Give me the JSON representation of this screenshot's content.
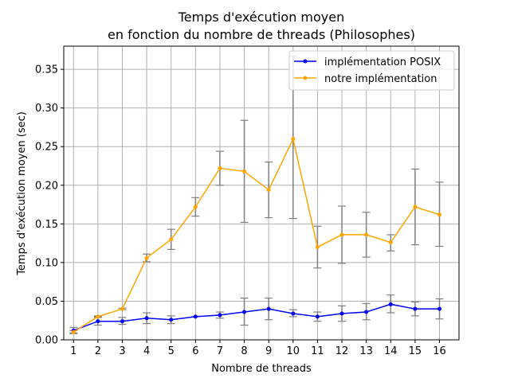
{
  "chart_data": {
    "type": "line",
    "title_line1": "Temps d'exécution moyen",
    "title_line2": "en fonction du nombre de threads (Philosophes)",
    "xlabel": "Nombre de threads",
    "ylabel": "Temps d'exécution moyen (sec)",
    "x": [
      1,
      2,
      3,
      4,
      5,
      6,
      7,
      8,
      9,
      10,
      11,
      12,
      13,
      14,
      15,
      16
    ],
    "xlim": [
      0.6,
      16.8
    ],
    "ylim": [
      0.0,
      0.38
    ],
    "yticks": [
      0.0,
      0.05,
      0.1,
      0.15,
      0.2,
      0.25,
      0.3,
      0.35
    ],
    "ytick_labels": [
      "0.00",
      "0.05",
      "0.10",
      "0.15",
      "0.20",
      "0.25",
      "0.30",
      "0.35"
    ],
    "xtick_labels": [
      "1",
      "2",
      "3",
      "4",
      "5",
      "6",
      "7",
      "8",
      "9",
      "10",
      "11",
      "12",
      "13",
      "14",
      "15",
      "16"
    ],
    "grid": true,
    "legend_position": "top-right",
    "series": [
      {
        "name": "implémentation POSIX",
        "color": "#0000ff",
        "values": [
          0.012,
          0.024,
          0.024,
          0.028,
          0.026,
          0.03,
          0.032,
          0.036,
          0.04,
          0.034,
          0.03,
          0.034,
          0.036,
          0.046,
          0.04,
          0.04
        ],
        "err_low": [
          0.009,
          0.019,
          0.02,
          0.021,
          0.021,
          0.03,
          0.028,
          0.019,
          0.026,
          0.03,
          0.024,
          0.024,
          0.026,
          0.035,
          0.031,
          0.027
        ],
        "err_high": [
          0.016,
          0.03,
          0.029,
          0.035,
          0.031,
          0.03,
          0.036,
          0.054,
          0.054,
          0.039,
          0.036,
          0.044,
          0.047,
          0.058,
          0.049,
          0.053
        ]
      },
      {
        "name": "notre implémentation",
        "color": "#ffa500",
        "values": [
          0.01,
          0.03,
          0.04,
          0.106,
          0.13,
          0.172,
          0.222,
          0.218,
          0.194,
          0.26,
          0.12,
          0.136,
          0.136,
          0.126,
          0.172,
          0.162
        ],
        "err_low": [
          0.008,
          0.029,
          0.039,
          0.101,
          0.117,
          0.16,
          0.2,
          0.152,
          0.158,
          0.157,
          0.093,
          0.099,
          0.107,
          0.115,
          0.123,
          0.121
        ],
        "err_high": [
          0.012,
          0.031,
          0.041,
          0.111,
          0.143,
          0.184,
          0.244,
          0.284,
          0.23,
          0.367,
          0.147,
          0.173,
          0.165,
          0.136,
          0.221,
          0.204
        ]
      }
    ],
    "error_bar_color": "#808080",
    "grid_color": "#b0b0b0"
  }
}
